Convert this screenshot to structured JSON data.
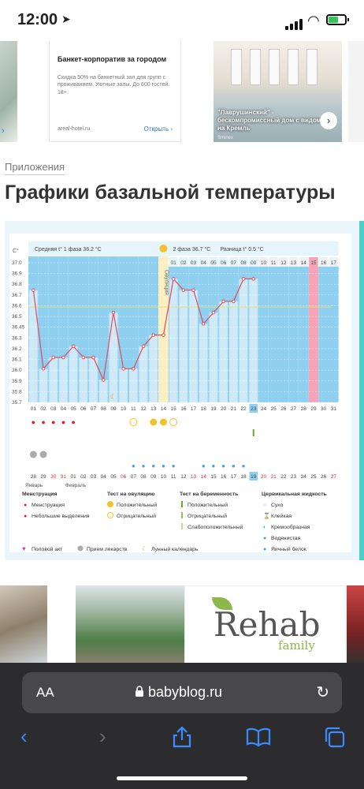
{
  "status_bar": {
    "time": "12:00"
  },
  "ads": {
    "left_chevron": "›",
    "middle": {
      "title": "Банкет-корпоратив за городом",
      "description": "Скидка 50% на банкетный зал для групп с проживанием. Уютные залы. До 600 гостей. 18+",
      "source": "areal-hotel.ru",
      "open_label": "Открыть"
    },
    "right": {
      "caption": "\"Лаврушинский\" - бескомпромиссный дом с видом на Кремль",
      "brand": "Sminex"
    }
  },
  "section_label": "Приложения",
  "page_title": "Графики базальной температуры",
  "chart_data": {
    "type": "line",
    "y_unit": "C°",
    "ylim": [
      35.7,
      37.0
    ],
    "y_ticks": [
      "37.0",
      "36.9",
      "36.8",
      "36.7",
      "36.6",
      "36.5",
      "36.45",
      "36.3",
      "36.2",
      "36.1",
      "36.0",
      "35.9",
      "35.8",
      "35.7"
    ],
    "phase1_label": "Средняя t° 1 фаза 36.2 °C",
    "phase2_label": "2 фаза 36.7 °C",
    "difference_label": "Разница t° 0.5 °C",
    "ovulation_label": "Овуляция",
    "coverline": 36.55,
    "ovulation_day_index": 13,
    "days": [
      "01",
      "02",
      "03",
      "04",
      "05",
      "06",
      "07",
      "08",
      "09",
      "10",
      "11",
      "12",
      "13",
      "14",
      "15",
      "16",
      "17",
      "18",
      "19",
      "20",
      "21",
      "22",
      "23",
      "24",
      "25",
      "26",
      "27",
      "28",
      "29",
      "30",
      "31"
    ],
    "current_day_index": 22,
    "temperatures": [
      36.7,
      36.0,
      36.1,
      36.1,
      36.2,
      36.1,
      36.1,
      35.9,
      36.5,
      36.0,
      36.0,
      36.2,
      36.3,
      36.3,
      36.8,
      36.7,
      36.7,
      36.4,
      36.5,
      36.6,
      36.6,
      36.8,
      36.8
    ],
    "phase2_days": [
      "01",
      "02",
      "03",
      "04",
      "05",
      "06",
      "07",
      "08",
      "09",
      "10",
      "11",
      "12",
      "13",
      "14",
      "15",
      "16",
      "17"
    ],
    "phase2_pink_index": 14,
    "calendar_dates": [
      "28",
      "29",
      "30",
      "31",
      "01",
      "02",
      "03",
      "04",
      "05",
      "06",
      "07",
      "08",
      "09",
      "10",
      "11",
      "12",
      "13",
      "14",
      "15",
      "16",
      "17",
      "18",
      "19",
      "20",
      "21",
      "22",
      "23",
      "24",
      "25",
      "26",
      "27"
    ],
    "calendar_red_indices": [
      2,
      3,
      9,
      16,
      17,
      23,
      24,
      30
    ],
    "calendar_current_index": 22,
    "month_labels": [
      "Январь",
      "Февраль"
    ],
    "menstruation_days": [
      0,
      1,
      2,
      3,
      4
    ],
    "pill_days": [
      0,
      1
    ],
    "ovulation_test_positive": [
      12,
      13
    ],
    "ovulation_test_negative": [
      10,
      14
    ],
    "pregnancy_test_days": [
      22
    ],
    "moon_day": 8,
    "cervical_days": [
      10,
      11,
      12,
      13,
      14,
      17,
      18,
      19,
      20,
      21
    ],
    "legend": {
      "menstruation_title": "Менструация",
      "menstruation_items": [
        "Менструация",
        "Небольшие выделения"
      ],
      "ovulation_title": "Тест на овуляцию",
      "ovulation_items": [
        "Положительный",
        "Отрицательный"
      ],
      "pregnancy_title": "Тест на беременность",
      "pregnancy_items": [
        "Положительный",
        "Отрицательный",
        "Слабоположительный"
      ],
      "cervical_title": "Цервикальная жидкость",
      "cervical_items": [
        "Сухо",
        "Клейкая",
        "Кремообразная",
        "Водянистая",
        "Яичный белок"
      ],
      "bottom_items": [
        "Половой акт",
        "Прием лекарств",
        "Лунный календарь"
      ]
    }
  },
  "promo": {
    "logo_main": "Rehab",
    "logo_sub": "family"
  },
  "browser": {
    "aa_label": "AA",
    "url": "babyblog.ru"
  },
  "colors": {
    "accent": "#3a8cff",
    "chart_blue": "#8fd0f0",
    "line": "#e04a5a"
  }
}
